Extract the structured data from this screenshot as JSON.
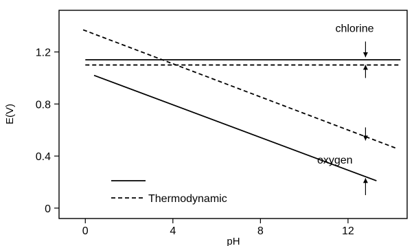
{
  "chart_data": {
    "type": "line",
    "title": "",
    "xlabel": "pH",
    "ylabel": "E(V)",
    "xlim": [
      -1.2,
      14.7
    ],
    "ylim": [
      -0.08,
      1.52
    ],
    "grid": false,
    "xticks": [
      0,
      4,
      8,
      12
    ],
    "yticks": [
      0,
      0.4,
      0.8,
      1.2
    ],
    "series": [
      {
        "style": "solid",
        "color": "#000000",
        "x": [
          0,
          14.4
        ],
        "y": [
          1.14,
          1.14
        ]
      },
      {
        "style": "dashed",
        "color": "#000000",
        "x": [
          0,
          14.4
        ],
        "y": [
          1.1,
          1.1
        ]
      },
      {
        "style": "dashed",
        "color": "#000000",
        "x": [
          -0.1,
          14.2
        ],
        "y": [
          1.37,
          0.46
        ]
      },
      {
        "style": "solid",
        "color": "#000000",
        "x": [
          0.4,
          13.3
        ],
        "y": [
          1.02,
          0.21
        ]
      }
    ],
    "annotations": [
      {
        "text": "chlorine",
        "x": 12.3,
        "y": 1.38
      },
      {
        "text": "oxygen",
        "x": 11.4,
        "y": 0.37
      }
    ],
    "arrows": [
      {
        "x": 12.8,
        "direction": "down",
        "y_from": 1.28,
        "y_to": 1.16
      },
      {
        "x": 12.8,
        "direction": "up",
        "y_from": 1.0,
        "y_to": 1.1
      },
      {
        "x": 12.8,
        "direction": "down",
        "y_from": 0.62,
        "y_to": 0.52
      },
      {
        "x": 12.8,
        "direction": "up",
        "y_from": 0.1,
        "y_to": 0.23
      }
    ],
    "legend": {
      "placement": "bottom-left",
      "entries": [
        {
          "style": "solid",
          "label": ""
        },
        {
          "style": "dashed",
          "label": "Thermodynamic"
        }
      ]
    }
  }
}
